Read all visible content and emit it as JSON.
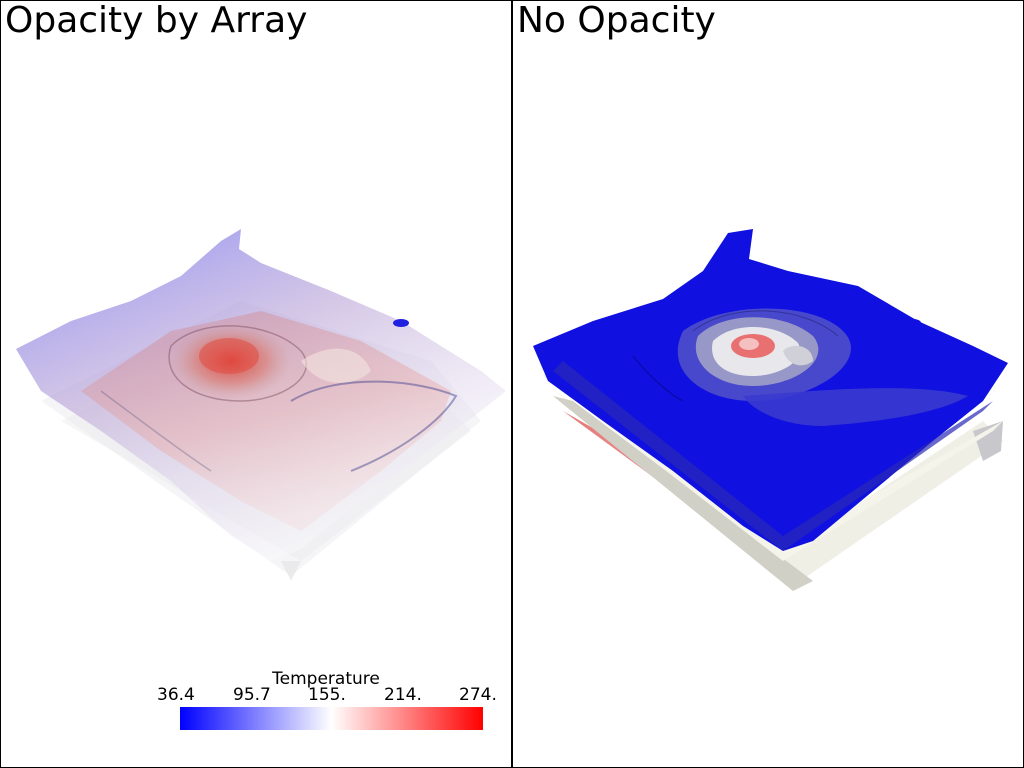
{
  "viewports": {
    "left": {
      "title": "Opacity by Array"
    },
    "right": {
      "title": "No Opacity"
    }
  },
  "scalar_bar": {
    "title": "Temperature",
    "labels": [
      "36.4",
      "95.7",
      "155.",
      "214.",
      "274."
    ],
    "colors": {
      "low": "#0000ff",
      "mid": "#ffffff",
      "high": "#ff0000"
    }
  },
  "colors": {
    "background": "#ffffff",
    "border": "#000000"
  }
}
